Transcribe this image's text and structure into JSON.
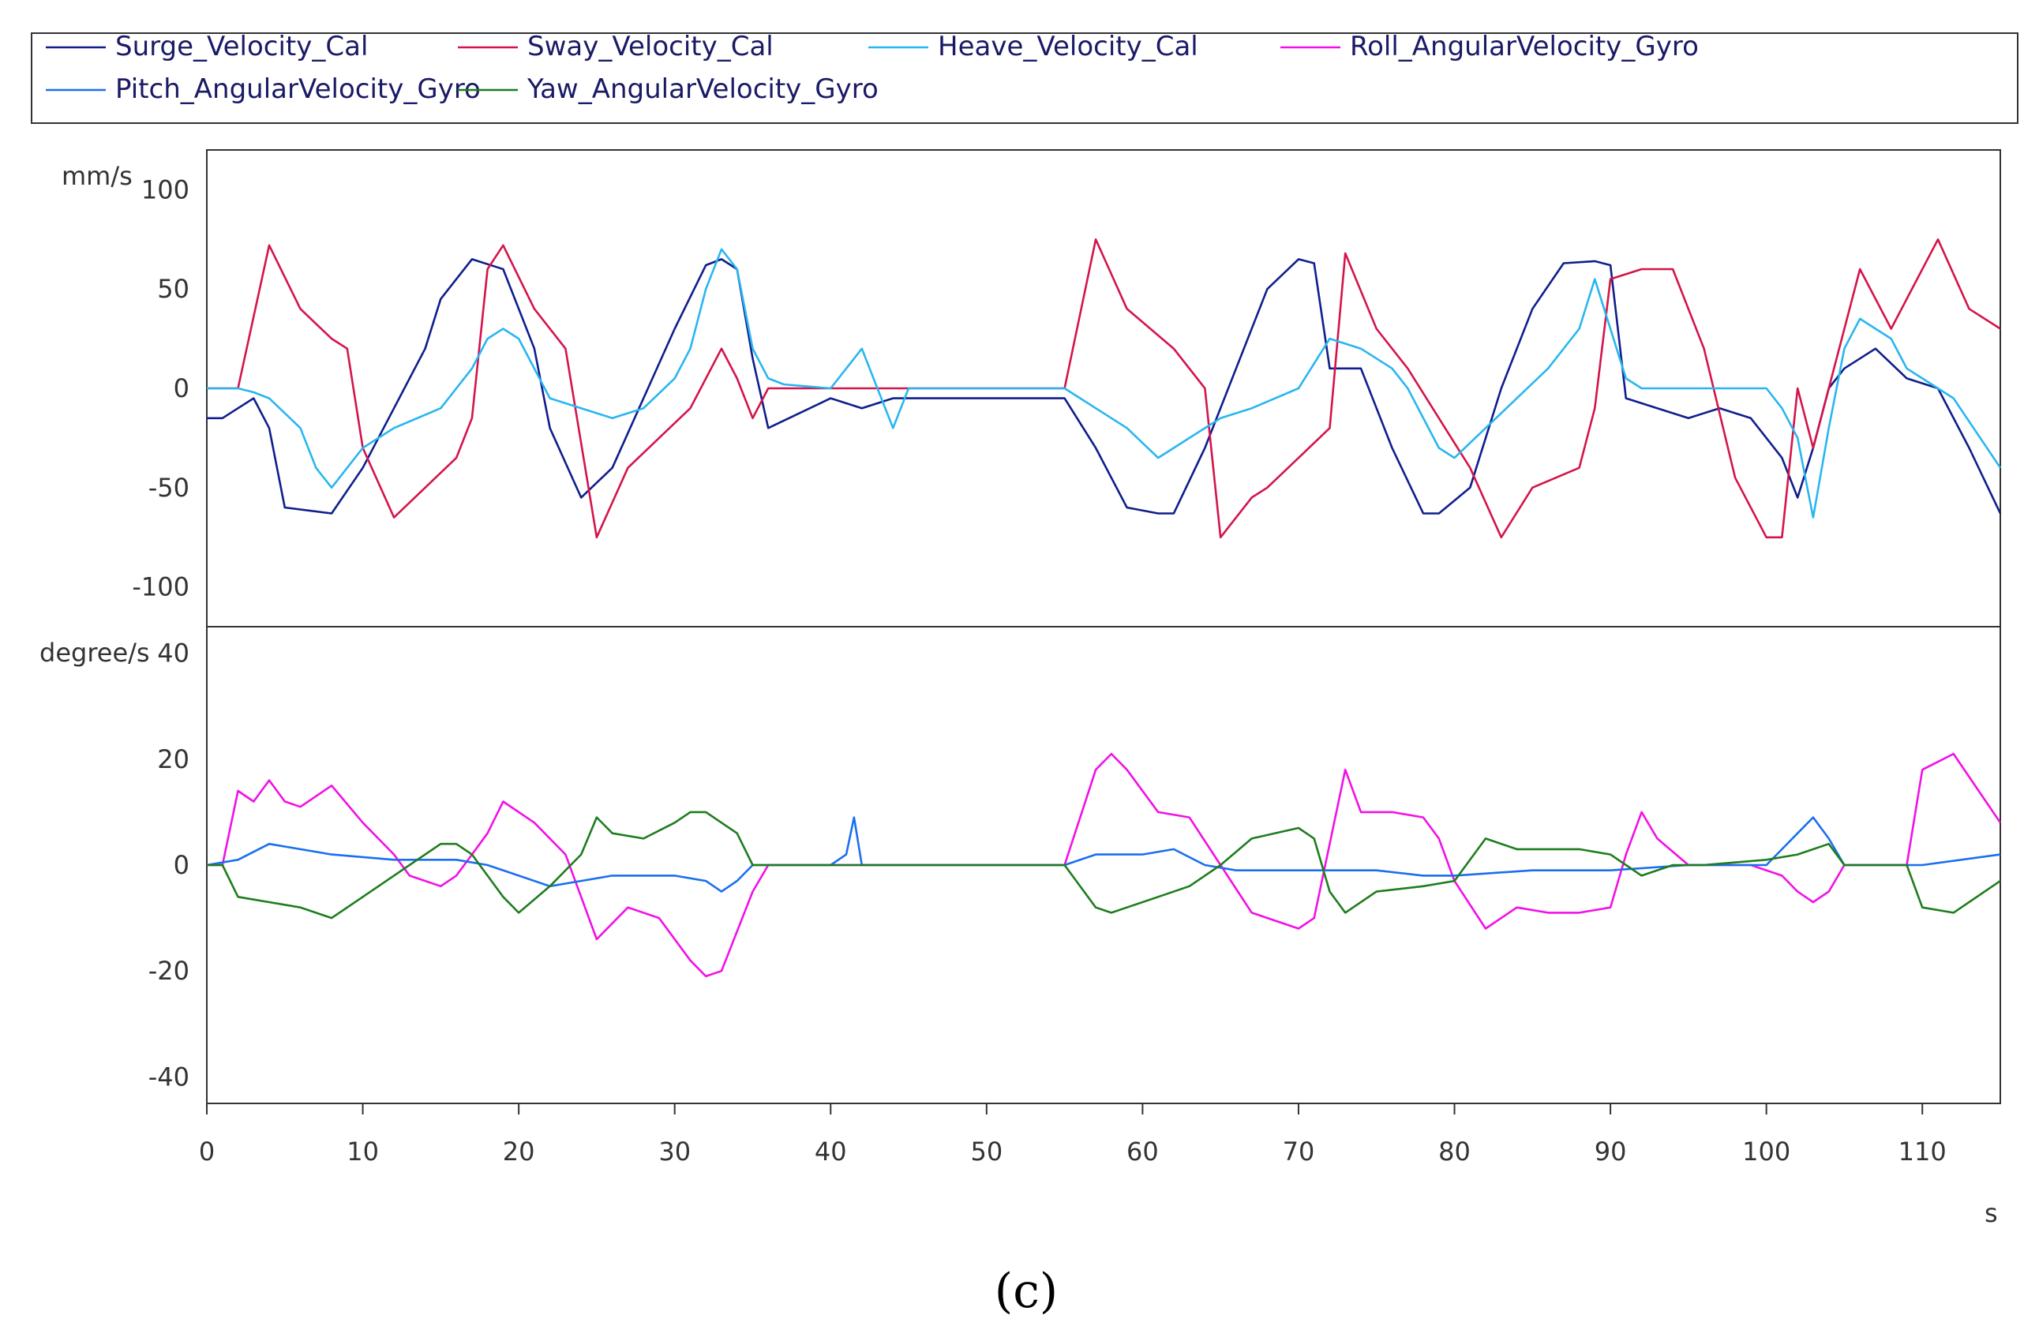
{
  "caption": "(c)",
  "legend": [
    {
      "name": "Surge_Velocity_Cal",
      "color": "#0f1e8c"
    },
    {
      "name": "Sway_Velocity_Cal",
      "color": "#d4144a"
    },
    {
      "name": "Heave_Velocity_Cal",
      "color": "#29b6f0"
    },
    {
      "name": "Roll_AngularVelocity_Gyro",
      "color": "#f210e6"
    },
    {
      "name": "Pitch_AngularVelocity_Gyro",
      "color": "#1a6ff0"
    },
    {
      "name": "Yaw_AngularVelocity_Gyro",
      "color": "#1e7d1e"
    }
  ],
  "chart_data": [
    {
      "type": "line",
      "ylabel": "mm/s",
      "xlim": [
        0,
        115
      ],
      "ylim": [
        -120,
        120
      ],
      "yticks": [
        100,
        50,
        0,
        -50,
        -100
      ],
      "series": [
        {
          "name": "Surge_Velocity_Cal",
          "color": "#0f1e8c",
          "x": [
            0,
            1,
            2,
            3,
            4,
            5,
            8,
            10,
            12,
            14,
            15,
            17,
            19,
            21,
            22,
            24,
            26,
            28,
            30,
            32,
            33,
            34,
            35,
            36,
            40,
            42,
            44,
            46,
            50,
            55,
            57,
            59,
            61,
            62,
            64,
            66,
            68,
            70,
            71,
            72,
            74,
            76,
            78,
            79,
            81,
            83,
            85,
            87,
            89,
            90,
            91,
            93,
            95,
            97,
            99,
            101,
            102,
            103,
            104,
            105,
            107,
            109,
            111,
            113,
            115
          ],
          "y": [
            -15,
            -15,
            -10,
            -5,
            -20,
            -60,
            -63,
            -40,
            -10,
            20,
            45,
            65,
            60,
            20,
            -20,
            -55,
            -40,
            -5,
            30,
            62,
            65,
            60,
            15,
            -20,
            -5,
            -10,
            -5,
            -5,
            -5,
            -5,
            -30,
            -60,
            -63,
            -63,
            -30,
            10,
            50,
            65,
            63,
            10,
            10,
            -30,
            -63,
            -63,
            -50,
            0,
            40,
            63,
            64,
            62,
            -5,
            -10,
            -15,
            -10,
            -15,
            -35,
            -55,
            -30,
            0,
            10,
            20,
            5,
            0,
            -30,
            -63
          ]
        },
        {
          "name": "Sway_Velocity_Cal",
          "color": "#d4144a",
          "x": [
            0,
            2,
            4,
            6,
            8,
            9,
            10,
            12,
            14,
            16,
            17,
            18,
            19,
            21,
            23,
            25,
            27,
            29,
            31,
            33,
            34,
            35,
            36,
            40,
            45,
            50,
            55,
            57,
            59,
            62,
            64,
            65,
            67,
            68,
            70,
            72,
            73,
            75,
            77,
            79,
            81,
            83,
            85,
            88,
            89,
            90,
            92,
            94,
            96,
            98,
            100,
            101,
            102,
            103,
            104,
            106,
            108,
            111,
            113,
            115
          ],
          "y": [
            0,
            0,
            72,
            40,
            25,
            20,
            -30,
            -65,
            -50,
            -35,
            -15,
            60,
            72,
            40,
            20,
            -75,
            -40,
            -25,
            -10,
            20,
            5,
            -15,
            0,
            0,
            0,
            0,
            0,
            75,
            40,
            20,
            0,
            -75,
            -55,
            -50,
            -35,
            -20,
            68,
            30,
            10,
            -15,
            -40,
            -75,
            -50,
            -40,
            -10,
            55,
            60,
            60,
            20,
            -45,
            -75,
            -75,
            0,
            -30,
            0,
            60,
            30,
            75,
            40,
            30
          ]
        },
        {
          "name": "Heave_Velocity_Cal",
          "color": "#29b6f0",
          "x": [
            0,
            2,
            3,
            4,
            6,
            7,
            8,
            9,
            10,
            12,
            15,
            17,
            18,
            19,
            20,
            22,
            24,
            26,
            28,
            30,
            31,
            32,
            33,
            34,
            35,
            36,
            37,
            40,
            42,
            43,
            44,
            45,
            50,
            55,
            57,
            59,
            61,
            63,
            65,
            67,
            70,
            72,
            74,
            76,
            77,
            79,
            80,
            82,
            84,
            86,
            88,
            89,
            91,
            92,
            95,
            100,
            101,
            102,
            103,
            104,
            105,
            106,
            107,
            108,
            109,
            110,
            112,
            115
          ],
          "y": [
            0,
            0,
            -2,
            -5,
            -20,
            -40,
            -50,
            -40,
            -30,
            -20,
            -10,
            10,
            25,
            30,
            25,
            -5,
            -10,
            -15,
            -10,
            5,
            20,
            50,
            70,
            60,
            20,
            5,
            2,
            0,
            20,
            0,
            -20,
            0,
            0,
            0,
            -10,
            -20,
            -35,
            -25,
            -15,
            -10,
            0,
            25,
            20,
            10,
            0,
            -30,
            -35,
            -20,
            -5,
            10,
            30,
            55,
            5,
            0,
            0,
            0,
            -10,
            -25,
            -65,
            -20,
            20,
            35,
            30,
            25,
            10,
            5,
            -5,
            -40
          ]
        }
      ]
    },
    {
      "type": "line",
      "ylabel": "degree/s",
      "xlabel": "s",
      "xlim": [
        0,
        115
      ],
      "ylim": [
        -45,
        45
      ],
      "yticks": [
        40,
        20,
        0,
        -20,
        -40
      ],
      "xticks": [
        0,
        10,
        20,
        30,
        40,
        50,
        60,
        70,
        80,
        90,
        100,
        110
      ],
      "series": [
        {
          "name": "Roll_AngularVelocity_Gyro",
          "color": "#f210e6",
          "x": [
            0,
            1,
            2,
            3,
            4,
            5,
            6,
            7,
            8,
            10,
            12,
            13,
            15,
            16,
            17,
            18,
            19,
            21,
            23,
            25,
            27,
            29,
            31,
            32,
            33,
            35,
            36,
            40,
            45,
            50,
            55,
            57,
            58,
            59,
            61,
            63,
            65,
            67,
            70,
            71,
            73,
            74,
            76,
            78,
            79,
            80,
            82,
            84,
            86,
            88,
            90,
            91,
            92,
            93,
            95,
            97,
            99,
            101,
            102,
            103,
            104,
            105,
            107,
            109,
            110,
            112,
            115
          ],
          "y": [
            0,
            0,
            14,
            12,
            16,
            12,
            11,
            13,
            15,
            8,
            2,
            -2,
            -4,
            -2,
            2,
            6,
            12,
            8,
            2,
            -14,
            -8,
            -10,
            -18,
            -21,
            -20,
            -5,
            0,
            0,
            0,
            0,
            0,
            18,
            21,
            18,
            10,
            9,
            0,
            -9,
            -12,
            -10,
            18,
            10,
            10,
            9,
            5,
            -3,
            -12,
            -8,
            -9,
            -9,
            -8,
            2,
            10,
            5,
            0,
            0,
            0,
            -2,
            -5,
            -7,
            -5,
            0,
            0,
            0,
            18,
            21,
            8
          ]
        },
        {
          "name": "Pitch_AngularVelocity_Gyro",
          "color": "#1a6ff0",
          "x": [
            0,
            2,
            4,
            6,
            8,
            12,
            16,
            18,
            20,
            22,
            24,
            26,
            30,
            32,
            33,
            34,
            35,
            40,
            41,
            41.5,
            42,
            45,
            50,
            55,
            57,
            60,
            62,
            64,
            66,
            70,
            75,
            78,
            80,
            85,
            88,
            90,
            95,
            100,
            101,
            102,
            103,
            104,
            105,
            110,
            115
          ],
          "y": [
            0,
            1,
            4,
            3,
            2,
            1,
            1,
            0,
            -2,
            -4,
            -3,
            -2,
            -2,
            -3,
            -5,
            -3,
            0,
            0,
            2,
            9,
            0,
            0,
            0,
            0,
            2,
            2,
            3,
            0,
            -1,
            -1,
            -1,
            -2,
            -2,
            -1,
            -1,
            -1,
            0,
            0,
            3,
            6,
            9,
            5,
            0,
            0,
            2
          ]
        },
        {
          "name": "Yaw_AngularVelocity_Gyro",
          "color": "#1e7d1e",
          "x": [
            0,
            1,
            2,
            4,
            6,
            8,
            10,
            12,
            14,
            15,
            16,
            17,
            18,
            19,
            20,
            22,
            24,
            25,
            26,
            28,
            30,
            31,
            32,
            34,
            35,
            40,
            45,
            50,
            55,
            57,
            58,
            59,
            61,
            63,
            65,
            67,
            70,
            71,
            72,
            73,
            75,
            78,
            80,
            82,
            84,
            86,
            88,
            90,
            91,
            92,
            94,
            96,
            100,
            102,
            104,
            105,
            108,
            109,
            110,
            112,
            115
          ],
          "y": [
            0,
            0,
            -6,
            -7,
            -8,
            -10,
            -6,
            -2,
            2,
            4,
            4,
            2,
            -2,
            -6,
            -9,
            -4,
            2,
            9,
            6,
            5,
            8,
            10,
            10,
            6,
            0,
            0,
            0,
            0,
            0,
            -8,
            -9,
            -8,
            -6,
            -4,
            0,
            5,
            7,
            5,
            -5,
            -9,
            -5,
            -4,
            -3,
            5,
            3,
            3,
            3,
            2,
            0,
            -2,
            0,
            0,
            1,
            2,
            4,
            0,
            0,
            0,
            -8,
            -9,
            -3
          ]
        }
      ]
    }
  ]
}
